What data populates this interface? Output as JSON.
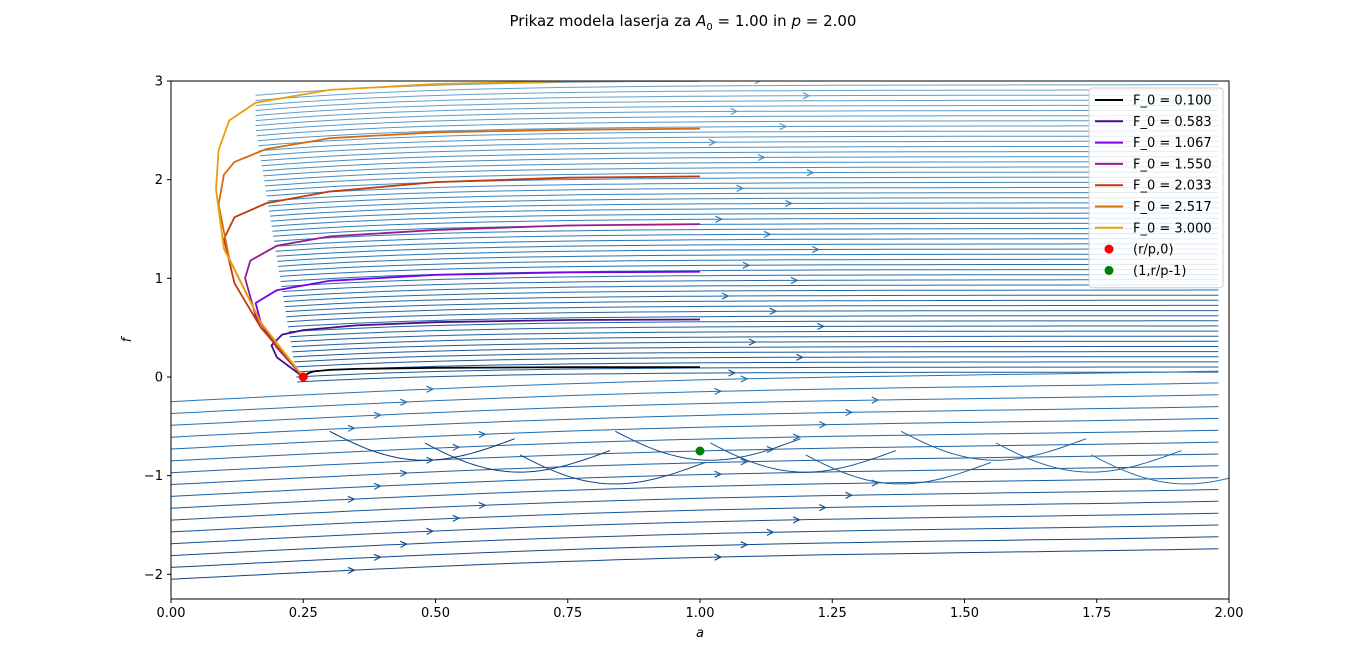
{
  "chart_data": {
    "type": "line",
    "title_parts": {
      "t1": "Prikaz modela laserja za ",
      "t2": "A",
      "t3": "0",
      "t4": " = 1.00 in ",
      "t5": "p",
      "t6": " = 2.00"
    },
    "xlabel": "a",
    "ylabel": "f",
    "xlim": [
      0,
      2
    ],
    "ylim": [
      -2.25,
      3
    ],
    "xticks": [
      0.0,
      0.25,
      0.5,
      0.75,
      1.0,
      1.25,
      1.5,
      1.75,
      2.0
    ],
    "xtick_labels": [
      "0.00",
      "0.25",
      "0.50",
      "0.75",
      "1.00",
      "1.25",
      "1.50",
      "1.75",
      "2.00"
    ],
    "yticks": [
      -2,
      -1,
      0,
      1,
      2,
      3
    ],
    "ytick_labels": [
      "−2",
      "−1",
      "0",
      "1",
      "2",
      "3"
    ],
    "grid": false,
    "legend_position": "top-right",
    "colors": {
      "stream_dark": "#08306b",
      "stream_mid": "#2879b9",
      "stream_light": "#a6cee3"
    },
    "series": [
      {
        "name": "F_0 = 0.100",
        "color": "#000000",
        "f0": 0.1,
        "points": [
          [
            1.0,
            0.1
          ],
          [
            0.75,
            0.099
          ],
          [
            0.5,
            0.093
          ],
          [
            0.35,
            0.082
          ],
          [
            0.3,
            0.072
          ],
          [
            0.27,
            0.057
          ],
          [
            0.26,
            0.04
          ],
          [
            0.25,
            0.0
          ]
        ]
      },
      {
        "name": "F_0 = 0.583",
        "color": "#4b0b8c",
        "f0": 0.583,
        "points": [
          [
            1.0,
            0.583
          ],
          [
            0.75,
            0.578
          ],
          [
            0.5,
            0.555
          ],
          [
            0.35,
            0.523
          ],
          [
            0.25,
            0.475
          ],
          [
            0.21,
            0.43
          ],
          [
            0.19,
            0.32
          ],
          [
            0.2,
            0.2
          ],
          [
            0.25,
            0.0
          ]
        ]
      },
      {
        "name": "F_0 = 1.067",
        "color": "#7a00e8",
        "f0": 1.067,
        "points": [
          [
            1.0,
            1.067
          ],
          [
            0.75,
            1.06
          ],
          [
            0.5,
            1.035
          ],
          [
            0.3,
            0.975
          ],
          [
            0.2,
            0.88
          ],
          [
            0.16,
            0.75
          ],
          [
            0.17,
            0.55
          ],
          [
            0.2,
            0.3
          ],
          [
            0.25,
            0.0
          ]
        ]
      },
      {
        "name": "F_0 = 1.550",
        "color": "#9a1a8c",
        "f0": 1.55,
        "points": [
          [
            1.0,
            1.55
          ],
          [
            0.75,
            1.535
          ],
          [
            0.5,
            1.49
          ],
          [
            0.3,
            1.425
          ],
          [
            0.2,
            1.33
          ],
          [
            0.15,
            1.18
          ],
          [
            0.14,
            1.0
          ],
          [
            0.16,
            0.62
          ],
          [
            0.2,
            0.3
          ],
          [
            0.25,
            0.0
          ]
        ]
      },
      {
        "name": "F_0 = 2.033",
        "color": "#c03a10",
        "f0": 2.033,
        "points": [
          [
            1.0,
            2.033
          ],
          [
            0.75,
            2.02
          ],
          [
            0.5,
            1.975
          ],
          [
            0.3,
            1.88
          ],
          [
            0.18,
            1.76
          ],
          [
            0.12,
            1.62
          ],
          [
            0.1,
            1.4
          ],
          [
            0.12,
            0.95
          ],
          [
            0.17,
            0.5
          ],
          [
            0.25,
            0.0
          ]
        ]
      },
      {
        "name": "F_0 = 2.517",
        "color": "#d86a10",
        "f0": 2.517,
        "points": [
          [
            1.0,
            2.517
          ],
          [
            0.75,
            2.505
          ],
          [
            0.5,
            2.48
          ],
          [
            0.3,
            2.42
          ],
          [
            0.18,
            2.31
          ],
          [
            0.12,
            2.18
          ],
          [
            0.1,
            2.05
          ],
          [
            0.09,
            1.75
          ],
          [
            0.11,
            1.2
          ],
          [
            0.17,
            0.55
          ],
          [
            0.25,
            0.0
          ]
        ]
      },
      {
        "name": "F_0 = 3.000",
        "color": "#e8a010",
        "f0": 3.0,
        "points": [
          [
            1.0,
            3.0
          ],
          [
            0.75,
            2.998
          ],
          [
            0.5,
            2.97
          ],
          [
            0.3,
            2.91
          ],
          [
            0.16,
            2.78
          ],
          [
            0.11,
            2.6
          ],
          [
            0.09,
            2.3
          ],
          [
            0.085,
            1.9
          ],
          [
            0.1,
            1.3
          ],
          [
            0.17,
            0.55
          ],
          [
            0.25,
            0.0
          ]
        ]
      }
    ],
    "points": [
      {
        "name": "(r/p,0)",
        "color": "#ff0000",
        "x": 0.25,
        "y": 0
      },
      {
        "name": "(1,r/p-1)",
        "color": "#008000",
        "x": 1.0,
        "y": -0.75
      }
    ]
  }
}
